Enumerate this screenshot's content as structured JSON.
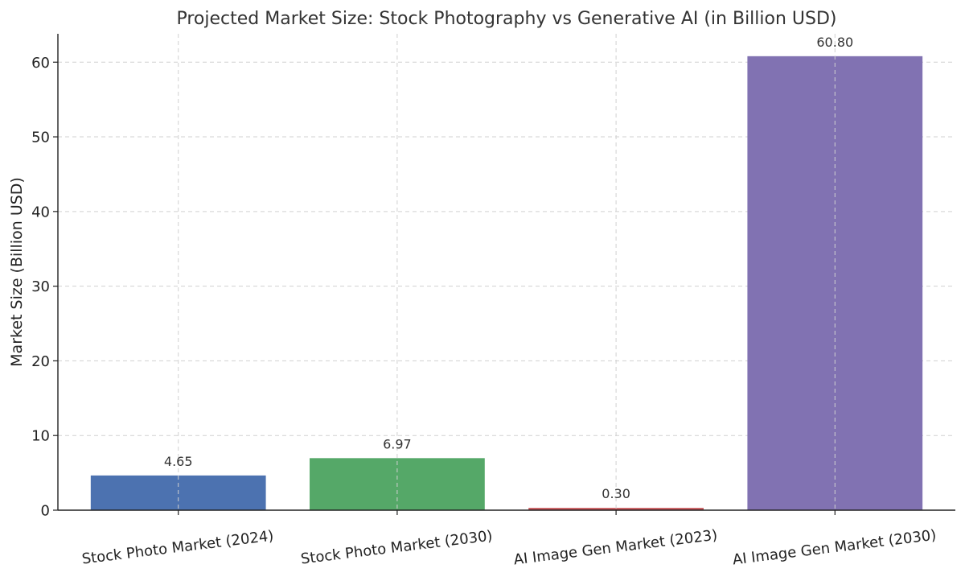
{
  "chart_data": {
    "type": "bar",
    "title": "Projected Market Size: Stock Photography vs Generative AI (in Billion USD)",
    "xlabel": "",
    "ylabel": "Market Size (Billion USD)",
    "categories": [
      "Stock Photo Market (2024)",
      "Stock Photo Market (2030)",
      "AI Image Gen Market (2023)",
      "AI Image Gen Market (2030)"
    ],
    "values": [
      4.65,
      6.97,
      0.3,
      60.8
    ],
    "value_labels": [
      "4.65",
      "6.97",
      "0.30",
      "60.80"
    ],
    "colors": [
      "#4c72b0",
      "#55a868",
      "#c44e52",
      "#8172b2"
    ],
    "ylim": [
      0,
      63.8
    ],
    "yticks": [
      0,
      10,
      20,
      30,
      40,
      50,
      60
    ],
    "grid": true,
    "legend": "none"
  }
}
